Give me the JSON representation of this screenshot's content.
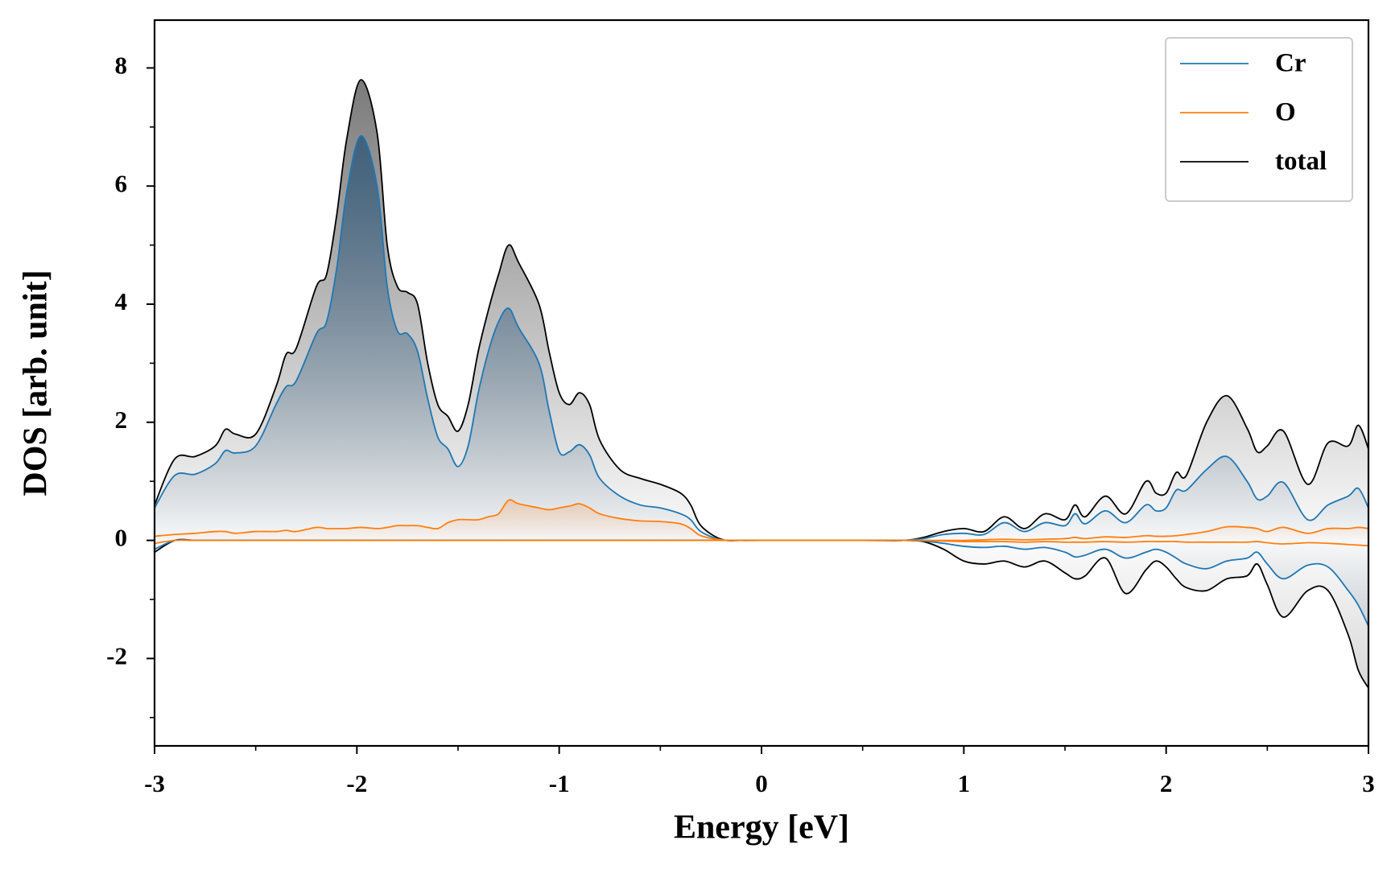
{
  "chart_data": {
    "type": "line",
    "xlabel": "Energy [eV]",
    "ylabel": "DOS [arb. unit]",
    "xlim": [
      -3,
      3
    ],
    "ylim": [
      -3.48,
      8.81
    ],
    "xticks": [
      -3,
      -2,
      -1,
      0,
      1,
      2,
      3
    ],
    "yticks": [
      -2,
      0,
      2,
      4,
      6,
      8
    ],
    "xminorticks": [
      -2.5,
      -1.5,
      -0.5,
      0.5,
      1.5,
      2.5
    ],
    "yminorticks": [
      -3,
      -1,
      1,
      3,
      5,
      7
    ],
    "legend": "upper right",
    "x": [
      -3,
      -2.9,
      -2.8,
      -2.7,
      -2.65,
      -2.6,
      -2.5,
      -2.4,
      -2.35,
      -2.3,
      -2.2,
      -2.15,
      -2.1,
      -2.05,
      -1.98,
      -1.9,
      -1.85,
      -1.8,
      -1.75,
      -1.7,
      -1.65,
      -1.6,
      -1.55,
      -1.5,
      -1.45,
      -1.4,
      -1.35,
      -1.3,
      -1.25,
      -1.2,
      -1.1,
      -1.05,
      -1.0,
      -0.95,
      -0.9,
      -0.85,
      -0.8,
      -0.7,
      -0.6,
      -0.5,
      -0.4,
      -0.35,
      -0.3,
      -0.2,
      -0.1,
      0,
      0.5,
      0.7,
      0.8,
      0.9,
      1.0,
      1.1,
      1.2,
      1.3,
      1.4,
      1.5,
      1.55,
      1.6,
      1.7,
      1.8,
      1.9,
      1.95,
      2.0,
      2.05,
      2.1,
      2.2,
      2.3,
      2.4,
      2.45,
      2.5,
      2.58,
      2.7,
      2.8,
      2.9,
      2.95,
      3.0
    ],
    "series": [
      {
        "name": "Cr",
        "color": "#1f77b4",
        "values": [
          0.55,
          1.1,
          1.12,
          1.3,
          1.52,
          1.48,
          1.6,
          2.3,
          2.6,
          2.7,
          3.5,
          3.7,
          4.6,
          5.9,
          6.85,
          6.0,
          4.3,
          3.55,
          3.5,
          3.2,
          2.4,
          1.75,
          1.55,
          1.25,
          1.6,
          2.5,
          3.2,
          3.7,
          3.93,
          3.6,
          3.0,
          2.2,
          1.5,
          1.5,
          1.62,
          1.45,
          1.05,
          0.75,
          0.6,
          0.55,
          0.45,
          0.35,
          0.15,
          0.01,
          0,
          0,
          0,
          0,
          0.03,
          0.1,
          0.12,
          0.1,
          0.3,
          0.15,
          0.3,
          0.25,
          0.45,
          0.28,
          0.5,
          0.3,
          0.6,
          0.5,
          0.55,
          0.85,
          0.85,
          1.2,
          1.42,
          1.0,
          0.7,
          0.75,
          0.98,
          0.35,
          0.6,
          0.75,
          0.88,
          0.55
        ],
        "values_down": [
          -0.15,
          0,
          0,
          0,
          0,
          0,
          0,
          0,
          0,
          0,
          0,
          0,
          0,
          0,
          0,
          0,
          0,
          0,
          0,
          0,
          0,
          0,
          0,
          0,
          0,
          0,
          0,
          0,
          0,
          0,
          0,
          0,
          0,
          0,
          0,
          0,
          0,
          0,
          0,
          0,
          0,
          0,
          0,
          0,
          0,
          0,
          0,
          0,
          -0.01,
          -0.05,
          -0.1,
          -0.12,
          -0.1,
          -0.15,
          -0.12,
          -0.2,
          -0.28,
          -0.25,
          -0.15,
          -0.3,
          -0.2,
          -0.15,
          -0.2,
          -0.3,
          -0.4,
          -0.48,
          -0.35,
          -0.3,
          -0.2,
          -0.4,
          -0.65,
          -0.42,
          -0.45,
          -0.85,
          -1.1,
          -1.45
        ],
        "fill": "#2b5578"
      },
      {
        "name": "O",
        "color": "#ff7f0e",
        "values": [
          0.07,
          0.1,
          0.12,
          0.15,
          0.15,
          0.12,
          0.15,
          0.15,
          0.17,
          0.15,
          0.22,
          0.2,
          0.2,
          0.2,
          0.22,
          0.2,
          0.22,
          0.25,
          0.25,
          0.25,
          0.22,
          0.2,
          0.3,
          0.35,
          0.35,
          0.35,
          0.4,
          0.45,
          0.68,
          0.62,
          0.55,
          0.52,
          0.55,
          0.58,
          0.62,
          0.55,
          0.45,
          0.37,
          0.33,
          0.32,
          0.28,
          0.2,
          0.08,
          0.01,
          0,
          0,
          0,
          0,
          0,
          0,
          0,
          0.01,
          0.02,
          0.01,
          0.02,
          0.03,
          0.05,
          0.03,
          0.06,
          0.05,
          0.08,
          0.07,
          0.07,
          0.08,
          0.1,
          0.15,
          0.23,
          0.22,
          0.2,
          0.15,
          0.22,
          0.12,
          0.2,
          0.2,
          0.22,
          0.2
        ],
        "values_down": [
          -0.05,
          0,
          0,
          0,
          0,
          0,
          0,
          0,
          0,
          0,
          0,
          0,
          0,
          0,
          0,
          0,
          0,
          0,
          0,
          0,
          0,
          0,
          0,
          0,
          0,
          0,
          0,
          0,
          0,
          0,
          0,
          0,
          0,
          0,
          0,
          0,
          0,
          0,
          0,
          0,
          0,
          0,
          0,
          0,
          0,
          0,
          0,
          0,
          0,
          -0.01,
          -0.02,
          -0.02,
          -0.02,
          -0.03,
          -0.02,
          -0.03,
          -0.03,
          -0.03,
          -0.02,
          -0.03,
          -0.02,
          -0.02,
          -0.02,
          -0.02,
          -0.03,
          -0.03,
          -0.03,
          -0.03,
          -0.02,
          -0.04,
          -0.06,
          -0.04,
          -0.05,
          -0.07,
          -0.08,
          -0.09
        ],
        "fill": "#f4a060"
      },
      {
        "name": "total",
        "color": "#000000",
        "values": [
          0.6,
          1.38,
          1.42,
          1.6,
          1.88,
          1.8,
          1.8,
          2.6,
          3.15,
          3.25,
          4.3,
          4.5,
          5.5,
          6.8,
          7.8,
          6.9,
          5.0,
          4.3,
          4.2,
          4.0,
          3.0,
          2.3,
          2.1,
          1.85,
          2.3,
          3.2,
          3.9,
          4.5,
          5.0,
          4.7,
          4.0,
          3.2,
          2.5,
          2.3,
          2.5,
          2.3,
          1.7,
          1.2,
          1.05,
          0.95,
          0.8,
          0.6,
          0.25,
          0.02,
          0,
          0,
          0,
          0,
          0.05,
          0.15,
          0.2,
          0.15,
          0.4,
          0.2,
          0.45,
          0.35,
          0.6,
          0.4,
          0.75,
          0.45,
          1.0,
          0.8,
          0.8,
          1.15,
          1.1,
          2.0,
          2.45,
          1.9,
          1.5,
          1.6,
          1.85,
          0.95,
          1.65,
          1.6,
          1.95,
          1.55
        ],
        "values_down": [
          -0.2,
          0,
          0,
          0,
          0,
          0,
          0,
          0,
          0,
          0,
          0,
          0,
          0,
          0,
          0,
          0,
          0,
          0,
          0,
          0,
          0,
          0,
          0,
          0,
          0,
          0,
          0,
          0,
          0,
          0,
          0,
          0,
          0,
          0,
          0,
          0,
          0,
          0,
          0,
          0,
          0,
          0,
          0,
          0,
          0,
          0,
          0,
          0,
          -0.02,
          -0.15,
          -0.35,
          -0.4,
          -0.35,
          -0.45,
          -0.35,
          -0.55,
          -0.65,
          -0.6,
          -0.3,
          -0.9,
          -0.5,
          -0.35,
          -0.45,
          -0.65,
          -0.8,
          -0.85,
          -0.65,
          -0.6,
          -0.4,
          -0.75,
          -1.3,
          -0.85,
          -0.85,
          -1.6,
          -2.2,
          -2.5
        ],
        "fill": "#555555"
      }
    ]
  }
}
